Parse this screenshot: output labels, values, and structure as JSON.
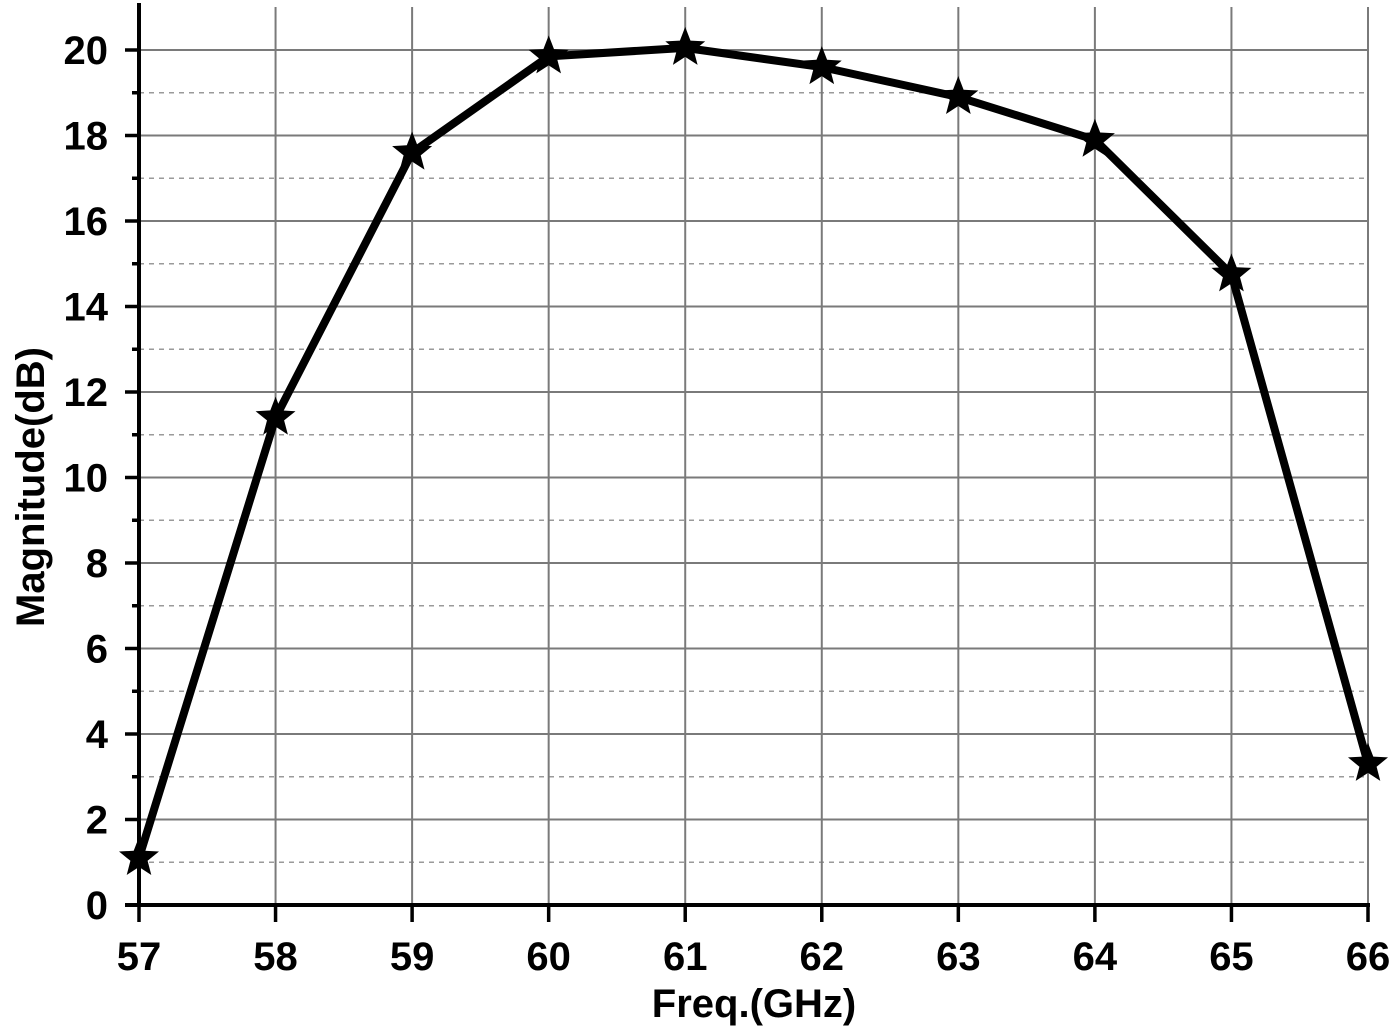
{
  "chart_data": {
    "type": "line",
    "title": "",
    "xlabel": "Freq.(GHz)",
    "ylabel": "Magnitude(dB)",
    "x": [
      57,
      58,
      59,
      60,
      61,
      62,
      63,
      64,
      65,
      66
    ],
    "series": [
      {
        "name": "Magnitude",
        "marker": "star",
        "color": "#000000",
        "values": [
          1.1,
          11.4,
          17.6,
          19.85,
          20.05,
          19.6,
          18.9,
          17.9,
          14.75,
          3.3
        ]
      }
    ],
    "xlim": [
      57,
      66
    ],
    "ylim": [
      0,
      21
    ],
    "xticks": [
      57,
      58,
      59,
      60,
      61,
      62,
      63,
      64,
      65,
      66
    ],
    "xtick_labels": [
      "57",
      "58",
      "59",
      "60",
      "61",
      "62",
      "63",
      "64",
      "65",
      "66"
    ],
    "yticks": [
      0,
      2,
      4,
      6,
      8,
      10,
      12,
      14,
      16,
      18,
      20
    ],
    "ytick_labels": [
      "0",
      "2",
      "4",
      "6",
      "8",
      "10",
      "12",
      "14",
      "16",
      "18",
      "20"
    ],
    "yminor_ticks": [
      1,
      3,
      5,
      7,
      9,
      11,
      13,
      15,
      17,
      19
    ],
    "grid": {
      "major": true,
      "minor_y": true,
      "major_color": "#7a7a7a",
      "minor_style": "dotted"
    },
    "legend": null
  }
}
